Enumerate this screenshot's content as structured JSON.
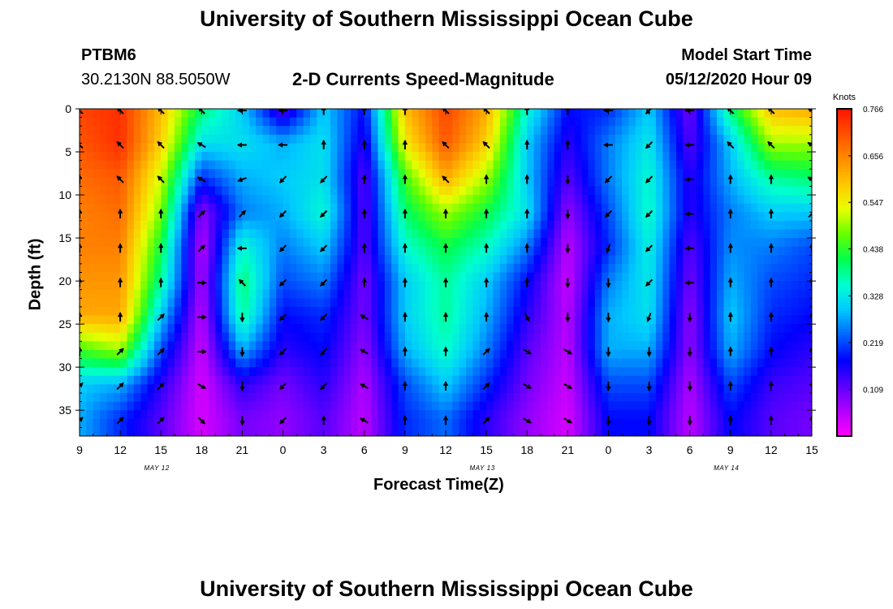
{
  "header": {
    "title_top": "University of Southern Mississippi Ocean Cube",
    "title_bottom": "University of Southern Mississippi Ocean Cube",
    "station_id": "PTBM6",
    "station_coords": "30.2130N 88.5050W",
    "model_start_label": "Model Start Time",
    "model_start_value": "05/12/2020 Hour 09"
  },
  "colors": {
    "scale": [
      "#ff00ff",
      "#b000ff",
      "#5a00ff",
      "#0000ff",
      "#0064ff",
      "#00c8ff",
      "#00ffd0",
      "#00ff50",
      "#64ff00",
      "#e6ff00",
      "#ffc800",
      "#ff8c00",
      "#ff5000",
      "#ff1400"
    ],
    "arrow": "#000000"
  },
  "chart_data": {
    "type": "heatmap",
    "title": "2-D Currents Speed-Magnitude",
    "xlabel": "Forecast Time(Z)",
    "ylabel": "Depth (ft)",
    "x_tick_labels": [
      "9",
      "12",
      "15",
      "18",
      "21",
      "0",
      "3",
      "6",
      "9",
      "12",
      "15",
      "18",
      "21",
      "0",
      "3",
      "6",
      "9",
      "12",
      "15"
    ],
    "x_date_labels": [
      {
        "label": "MAY 12",
        "tick_index": 2
      },
      {
        "label": "MAY 13",
        "tick_index": 10
      },
      {
        "label": "MAY 14",
        "tick_index": 16
      }
    ],
    "x_hour_range": [
      0,
      54
    ],
    "y_ticks": [
      0,
      5,
      10,
      15,
      20,
      25,
      30,
      35
    ],
    "ylim": [
      0,
      38
    ],
    "y_reversed": true,
    "colorbar": {
      "unit": "Knots",
      "tick_labels": [
        "0.766",
        "0.656",
        "0.547",
        "0.438",
        "0.328",
        "0.219",
        "0.109"
      ],
      "range": [
        0,
        0.766
      ]
    },
    "depth_rows_ft": [
      0,
      4,
      8,
      12,
      16,
      20,
      24,
      28,
      32,
      36
    ],
    "hours_cols": [
      0,
      3,
      6,
      9,
      12,
      15,
      18,
      21,
      24,
      27,
      30,
      33,
      36,
      39,
      42,
      45,
      48,
      51,
      54
    ],
    "speed_knots": [
      [
        0.72,
        0.74,
        0.6,
        0.4,
        0.3,
        0.12,
        0.3,
        0.18,
        0.6,
        0.72,
        0.62,
        0.35,
        0.18,
        0.2,
        0.3,
        0.1,
        0.4,
        0.6,
        0.62
      ],
      [
        0.7,
        0.74,
        0.58,
        0.32,
        0.32,
        0.28,
        0.32,
        0.15,
        0.55,
        0.7,
        0.58,
        0.3,
        0.15,
        0.25,
        0.33,
        0.12,
        0.3,
        0.5,
        0.5
      ],
      [
        0.68,
        0.7,
        0.52,
        0.2,
        0.28,
        0.3,
        0.32,
        0.12,
        0.45,
        0.62,
        0.5,
        0.3,
        0.12,
        0.25,
        0.35,
        0.15,
        0.28,
        0.38,
        0.4
      ],
      [
        0.66,
        0.68,
        0.48,
        0.08,
        0.25,
        0.28,
        0.35,
        0.12,
        0.4,
        0.5,
        0.42,
        0.32,
        0.08,
        0.22,
        0.36,
        0.15,
        0.25,
        0.3,
        0.3
      ],
      [
        0.66,
        0.66,
        0.42,
        0.05,
        0.35,
        0.25,
        0.3,
        0.12,
        0.35,
        0.42,
        0.36,
        0.25,
        0.05,
        0.2,
        0.34,
        0.12,
        0.26,
        0.25,
        0.22
      ],
      [
        0.64,
        0.64,
        0.38,
        0.06,
        0.4,
        0.22,
        0.25,
        0.1,
        0.3,
        0.38,
        0.3,
        0.18,
        0.04,
        0.25,
        0.33,
        0.1,
        0.28,
        0.22,
        0.2
      ],
      [
        0.62,
        0.62,
        0.3,
        0.05,
        0.38,
        0.18,
        0.2,
        0.1,
        0.3,
        0.38,
        0.28,
        0.15,
        0.05,
        0.28,
        0.32,
        0.08,
        0.3,
        0.2,
        0.18
      ],
      [
        0.45,
        0.5,
        0.22,
        0.04,
        0.28,
        0.15,
        0.18,
        0.08,
        0.28,
        0.36,
        0.25,
        0.12,
        0.05,
        0.28,
        0.28,
        0.08,
        0.28,
        0.18,
        0.15
      ],
      [
        0.3,
        0.28,
        0.15,
        0.03,
        0.15,
        0.1,
        0.15,
        0.06,
        0.22,
        0.3,
        0.2,
        0.1,
        0.04,
        0.22,
        0.22,
        0.06,
        0.22,
        0.14,
        0.12
      ],
      [
        0.28,
        0.2,
        0.12,
        0.03,
        0.1,
        0.08,
        0.12,
        0.05,
        0.2,
        0.24,
        0.15,
        0.08,
        0.03,
        0.18,
        0.18,
        0.05,
        0.18,
        0.12,
        0.1
      ]
    ],
    "direction_deg": [
      [
        315,
        315,
        315,
        315,
        270,
        270,
        0,
        0,
        0,
        315,
        315,
        0,
        0,
        270,
        225,
        270,
        315,
        315,
        300
      ],
      [
        315,
        315,
        315,
        300,
        270,
        270,
        0,
        0,
        0,
        315,
        315,
        0,
        0,
        270,
        225,
        270,
        315,
        315,
        300
      ],
      [
        0,
        315,
        315,
        300,
        250,
        225,
        225,
        0,
        0,
        315,
        0,
        0,
        180,
        225,
        225,
        270,
        0,
        0,
        300
      ],
      [
        0,
        0,
        0,
        45,
        45,
        225,
        225,
        0,
        0,
        0,
        0,
        0,
        180,
        225,
        225,
        270,
        0,
        0,
        45
      ],
      [
        0,
        0,
        0,
        45,
        270,
        225,
        225,
        0,
        0,
        0,
        0,
        0,
        180,
        200,
        225,
        270,
        0,
        0,
        0
      ],
      [
        0,
        0,
        0,
        90,
        315,
        225,
        225,
        0,
        0,
        0,
        0,
        0,
        180,
        180,
        225,
        270,
        0,
        0,
        0
      ],
      [
        0,
        0,
        45,
        90,
        180,
        225,
        225,
        300,
        0,
        0,
        0,
        150,
        180,
        180,
        200,
        180,
        0,
        0,
        0
      ],
      [
        0,
        45,
        45,
        90,
        180,
        225,
        225,
        300,
        0,
        0,
        45,
        120,
        120,
        180,
        180,
        180,
        0,
        0,
        0
      ],
      [
        45,
        45,
        45,
        120,
        180,
        225,
        225,
        300,
        0,
        0,
        45,
        120,
        120,
        180,
        180,
        180,
        0,
        0,
        0
      ],
      [
        45,
        45,
        45,
        135,
        180,
        225,
        0,
        300,
        0,
        0,
        45,
        120,
        120,
        180,
        180,
        180,
        0,
        0,
        0
      ]
    ]
  }
}
